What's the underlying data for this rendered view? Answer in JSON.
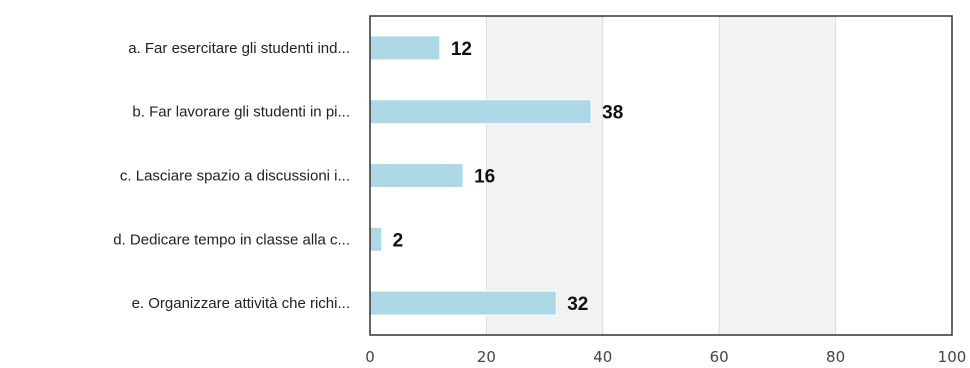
{
  "chart_data": {
    "type": "bar",
    "orientation": "horizontal",
    "categories": [
      "a. Far esercitare gli studenti ind...",
      "b. Far lavorare gli studenti in pi...",
      "c. Lasciare spazio a discussioni i...",
      "d. Dedicare tempo in classe alla c...",
      "e. Organizzare attività che richi..."
    ],
    "values": [
      12,
      38,
      16,
      2,
      32
    ],
    "xlim": [
      0,
      100
    ],
    "xticks": [
      "0",
      "20",
      "40",
      "60",
      "80",
      "100"
    ],
    "title": "",
    "xlabel": "",
    "ylabel": "",
    "grid": true,
    "alternating_band_color": "#f2f2f2",
    "bar_color": "#add8e6",
    "bar_border_color": "#ffffff",
    "frame_color": "#333333",
    "gridline_color": "#dddddd"
  }
}
